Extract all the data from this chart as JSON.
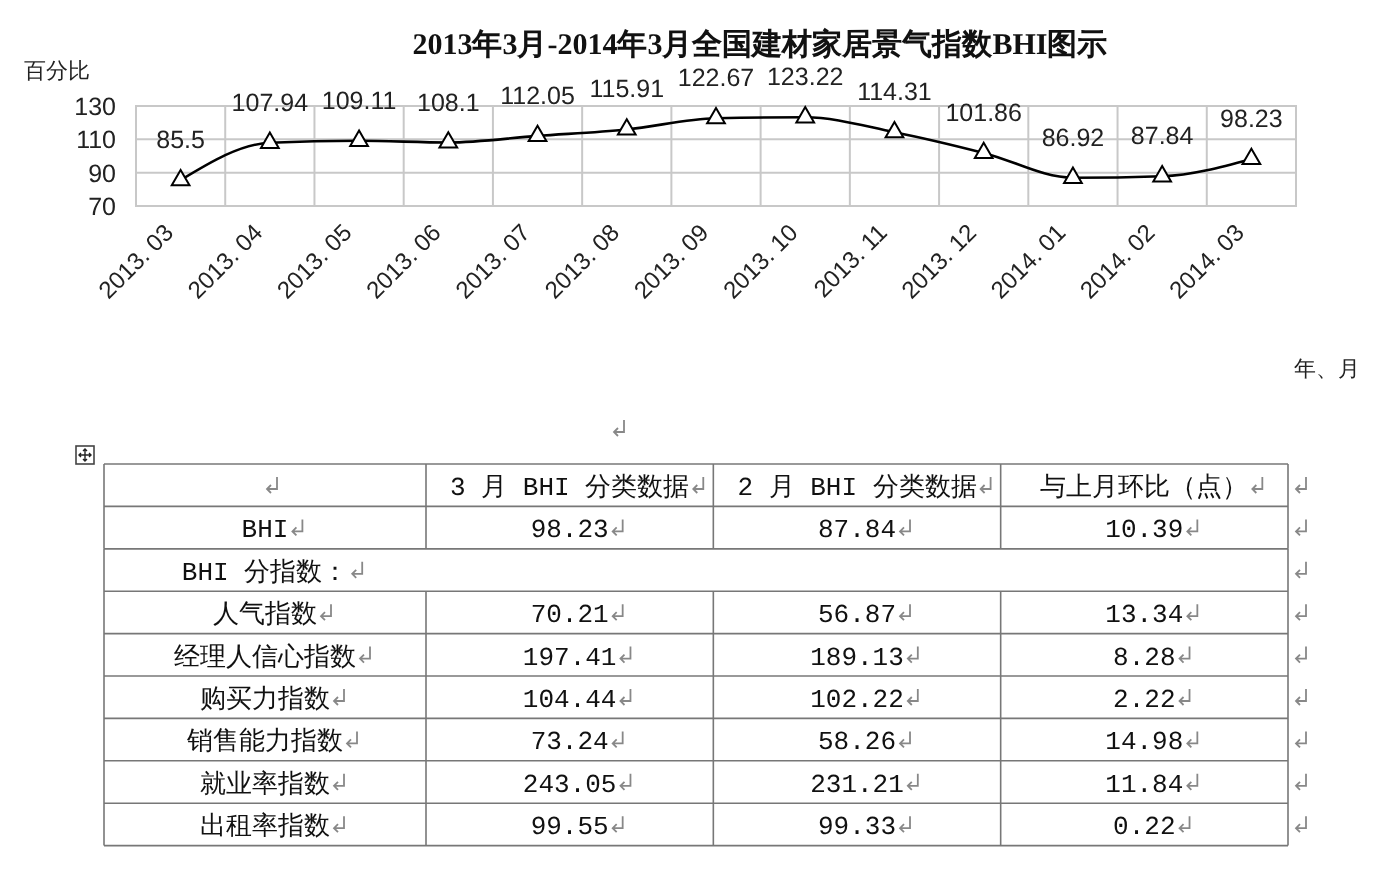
{
  "chart_data": [
    {
      "type": "line",
      "title": "2013年3月-2014年3月全国建材家居景气指数BHI图示",
      "ylabel": "百分比",
      "xlabel": "年、月",
      "categories": [
        "2013. 03",
        "2013. 04",
        "2013. 05",
        "2013. 06",
        "2013. 07",
        "2013. 08",
        "2013. 09",
        "2013. 10",
        "2013. 11",
        "2013. 12",
        "2014. 01",
        "2014. 02",
        "2014. 03"
      ],
      "values": [
        85.5,
        107.94,
        109.11,
        108.1,
        112.05,
        115.91,
        122.67,
        123.22,
        114.31,
        101.86,
        86.92,
        87.84,
        98.23
      ],
      "color": "#000000",
      "ylim": [
        70,
        130
      ],
      "yticks": [
        70,
        90,
        110,
        130
      ],
      "grid": true,
      "marker": "triangle",
      "data_labels": true
    },
    {
      "type": "other",
      "categories": [
        "BHI"
      ],
      "series": [
        {
          "name": "3 月 BHI 分类数据",
          "values": [
            98.23
          ]
        },
        {
          "name": "2 月 BHI 分类数据",
          "values": [
            87.84
          ]
        },
        {
          "name": "与上月环比（点）",
          "values": [
            10.39
          ]
        }
      ],
      "data_labels": true
    },
    {
      "type": "other",
      "title": "BHI 分指数：",
      "categories": [
        "人气指数",
        "经理人信心指数",
        "购买力指数",
        "销售能力指数",
        "就业率指数",
        "出租率指数"
      ],
      "series": [
        {
          "values": [
            70.21,
            197.41,
            104.44,
            73.24,
            243.05,
            99.55
          ]
        },
        {
          "values": [
            56.87,
            189.13,
            102.22,
            58.26,
            231.21,
            99.33
          ]
        },
        {
          "values": [
            13.34,
            8.28,
            2.22,
            14.98,
            11.84,
            0.22
          ]
        }
      ],
      "data_labels": true
    }
  ]
}
